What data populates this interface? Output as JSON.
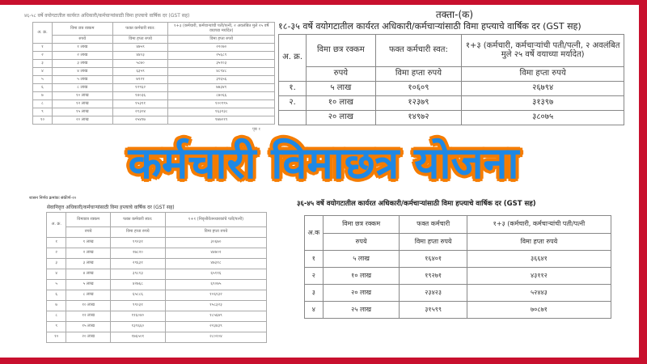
{
  "banner_title": "कर्मचारी विमाछत्र योजना",
  "colors": {
    "frame": "#c8102e",
    "banner_text": "#1e88e5",
    "banner_outline": "#f57c00"
  },
  "doc_top_left": {
    "title": "४६-५८ वर्षे वयोगटातील कार्यरत अधिकारी/कर्मचाऱ्यांसाठी विमा हप्त्याचे वार्षिक दर (GST सह)",
    "headers": [
      "अ. क्र.",
      "विमा छत्र रक्कम",
      "फक्त कर्मचारी स्वत:",
      "१+३ (कर्मचारी, कर्मचाऱ्यांची पती/पत्नी, २ अवलंबित मुले २५ वर्षे वयाच्या मर्यादेत)"
    ],
    "subheaders": [
      "",
      "रुपये",
      "विमा हप्ता रुपये",
      "विमा हप्ता रुपये"
    ],
    "rows": [
      [
        "१",
        "१ लाख",
        "४७५९",
        "२२०७०"
      ],
      [
        "२",
        "२ लाख",
        "४४०३",
        "२५६८९"
      ],
      [
        "३",
        "३ लाख",
        "५८७०",
        "३५१०३"
      ],
      [
        "४",
        "४ लाख",
        "६३५९",
        "४८९४८"
      ],
      [
        "५",
        "५ लाख",
        "७९२१",
        "३९६५६"
      ],
      [
        "६",
        "८ लाख",
        "१२९६२",
        "७७३४१"
      ],
      [
        "७",
        "१० लाख",
        "१४०३६",
        "८७०६६"
      ],
      [
        "८",
        "१२ लाख",
        "१५३११",
        "१००९९५"
      ],
      [
        "९",
        "१५ लाख",
        "२१३०४",
        "१६३२३८"
      ],
      [
        "१०",
        "२० लाख",
        "२५४१७",
        "१७७०११"
      ]
    ],
    "page_note": "पृष्ठ १"
  },
  "doc_top_right": {
    "table_label": "तक्ता-(क)",
    "title": "१८-३५ वर्षे वयोगटातील कार्यरत अधिकारी/कर्मचाऱ्यांसाठी विमा हप्त्याचे वार्षिक दर (GST सह)",
    "headers": [
      "अ. क्र.",
      "विमा छत्र रक्कम",
      "फक्त कर्मचारी स्वत:",
      "१+३ (कर्मचारी, कर्मचाऱ्यांची पती/पत्नी, २ अवलंबित मुले २५ वर्षे वयाच्या मर्यादेत)"
    ],
    "subheaders": [
      "",
      "रुपये",
      "विमा हप्ता रुपये",
      "विमा हप्ता रुपये"
    ],
    "rows": [
      [
        "१.",
        "५ लाख",
        "१०६०९",
        "२६७९४"
      ],
      [
        "२.",
        "१० लाख",
        "१२३७९",
        "३१३९७"
      ],
      [
        "",
        "२० लाख",
        "१४९७२",
        "३८०७५"
      ]
    ]
  },
  "doc_bottom_left": {
    "header_note": "शासन निर्णय क्रमांकः संकीर्ण-२०",
    "title": "सेवानिवृत्त अधिकारी/कर्मचाऱ्यांसाठी विमा हप्त्याचे वार्षिक दर (GST सह)",
    "headers": [
      "अ. क्र.",
      "विमाछत्र रक्कम",
      "फक्त कर्मचारी स्वत:",
      "१+१ (निवृत्तीवेतनधारकांचे पती/पत्नी)"
    ],
    "subheaders": [
      "",
      "रुपये",
      "विमा हप्ता रुपये",
      "विमा हप्ता रुपये"
    ],
    "rows": [
      [
        "१",
        "१ लाख",
        "१९२३१",
        "३०६७०"
      ],
      [
        "२",
        "२ लाख",
        "२७८२०",
        "४४७०२"
      ],
      [
        "३",
        "३ लाख",
        "२९६३१",
        "४७३१८"
      ],
      [
        "४",
        "४ लाख",
        "३९८१३",
        "६५११६"
      ],
      [
        "५",
        "५ लाख",
        "४२७६८",
        "६९०७५"
      ],
      [
        "६",
        "८ लाख",
        "६५८८६",
        "१०६१३२"
      ],
      [
        "७",
        "१० लाख",
        "९९०३१",
        "१५८३२३"
      ],
      [
        "८",
        "१२ लाख",
        "११६०४०",
        "१८५६७९"
      ],
      [
        "९",
        "१५ लाख",
        "१३९६६०",
        "२२३४३९"
      ],
      [
        "१०",
        "२० लाख",
        "१७६५०१",
        "२८०२०४"
      ]
    ]
  },
  "doc_bottom_right": {
    "title": "३६-४५ वर्षे वयोगटातील कार्यरत अधिकारी/कर्मचाऱ्यांसाठी विमा हप्त्याचे वार्षिक दर (GST सह)",
    "headers": [
      "अ.क",
      "विमा छत्र रक्कम",
      "फक्त कर्मचारी",
      "१+३ (कर्मचारी, कर्मचाऱ्यांची पती/पत्नी"
    ],
    "subheaders": [
      "",
      "रुपये",
      "विमा हप्ता रुपये",
      "विमा हप्ता रुपये"
    ],
    "rows": [
      [
        "१",
        "५ लाख",
        "१६४०१",
        "३६६४१"
      ],
      [
        "२",
        "१० लाख",
        "१९२७१",
        "४३११२"
      ],
      [
        "३",
        "२० लाख",
        "२३४२३",
        "५२४४३"
      ],
      [
        "४",
        "२५ लाख",
        "३१५९९",
        "७०८७१"
      ]
    ]
  }
}
